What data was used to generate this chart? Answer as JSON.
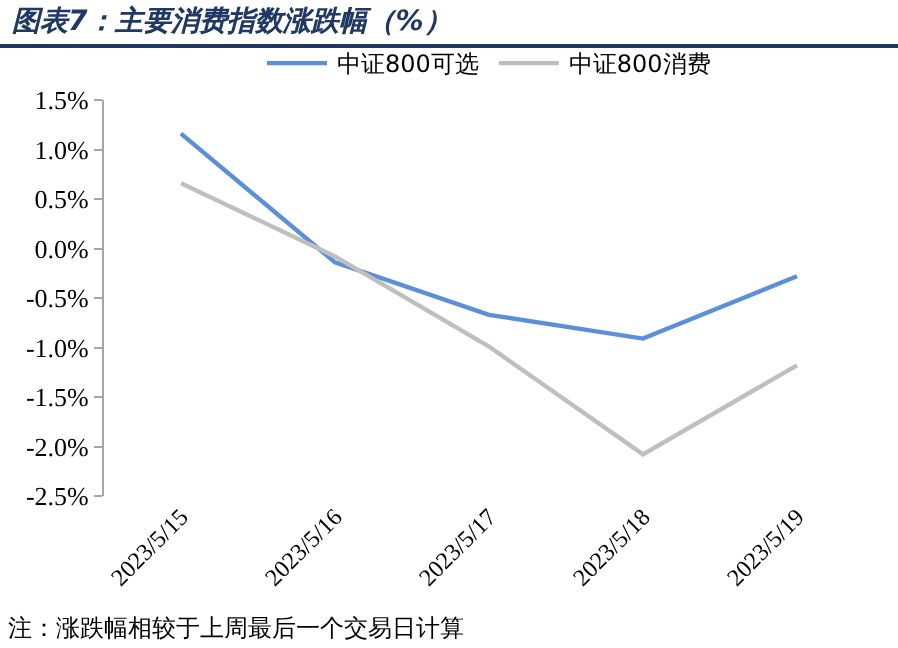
{
  "chart_data": {
    "type": "line",
    "title": "图表7：主要消费指数涨跌幅（%）",
    "categories": [
      "2023/5/15",
      "2023/5/16",
      "2023/5/17",
      "2023/5/18",
      "2023/5/19"
    ],
    "series": [
      {
        "name": "中证800可选",
        "color": "#5b8fd9",
        "values": [
          1.16,
          -0.14,
          -0.67,
          -0.91,
          -0.28
        ]
      },
      {
        "name": "中证800消费",
        "color": "#bfbfbf",
        "values": [
          0.66,
          -0.08,
          -0.99,
          -2.08,
          -1.18
        ]
      }
    ],
    "ylim": [
      -2.5,
      1.5
    ],
    "yticks": [
      {
        "value": -2.5,
        "label": "-2.5%"
      },
      {
        "value": -2,
        "label": "-2.0%"
      },
      {
        "value": -1.5,
        "label": "-1.5%"
      },
      {
        "value": -1,
        "label": "-1.0%"
      },
      {
        "value": -0.5,
        "label": "-0.5%"
      },
      {
        "value": 0,
        "label": "0.0%"
      },
      {
        "value": 0.5,
        "label": "0.5%"
      },
      {
        "value": 1,
        "label": "1.0%"
      },
      {
        "value": 1.5,
        "label": "1.5%"
      }
    ],
    "grid": false,
    "legend": "top",
    "marker": "none",
    "line_style": "solid",
    "annotations": [
      "注：涨跌幅相较于上周最后一个交易日计算"
    ]
  }
}
